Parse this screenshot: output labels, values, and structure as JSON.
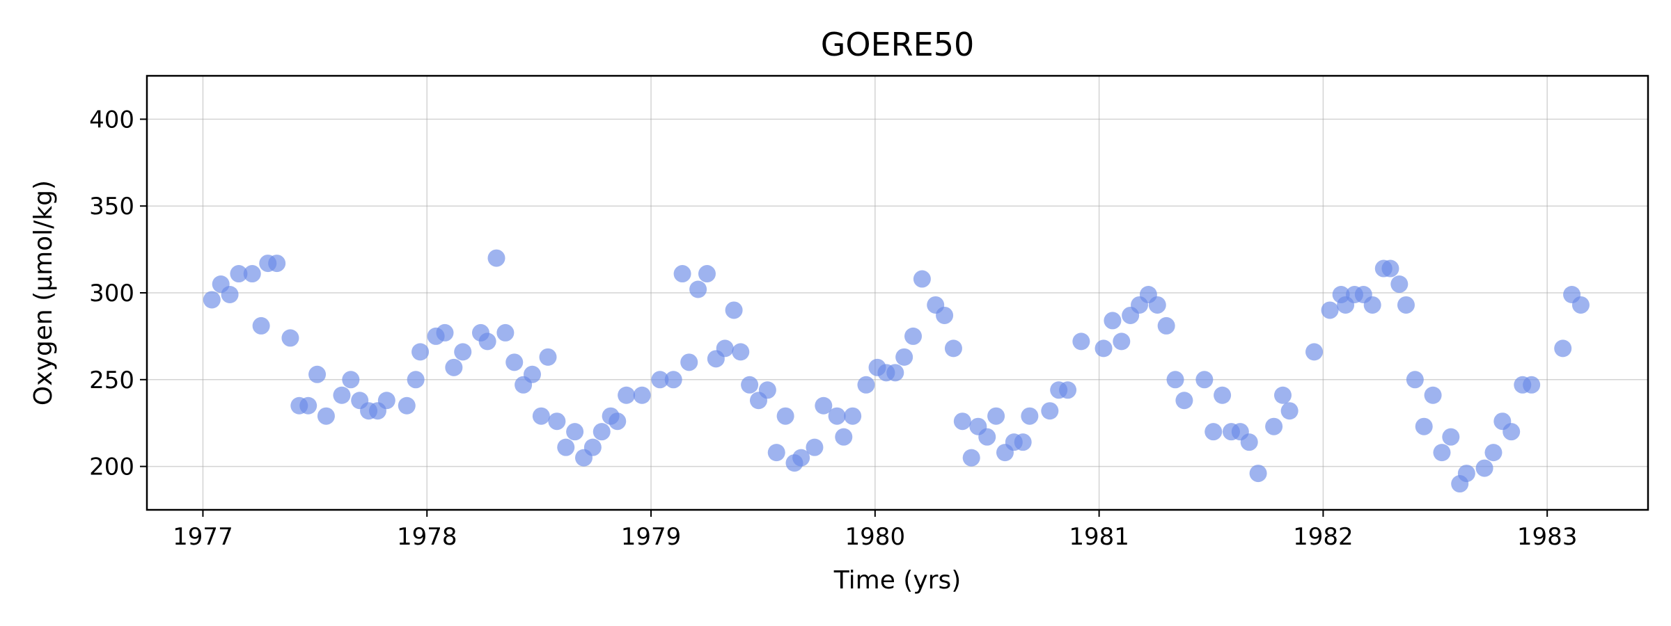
{
  "chart_data": {
    "type": "scatter",
    "title": "GOERE50",
    "xlabel": "Time (yrs)",
    "ylabel": "Oxygen (µmol/kg)",
    "xlim": [
      1976.75,
      1983.45
    ],
    "ylim": [
      175,
      425
    ],
    "xticks": [
      1977,
      1978,
      1979,
      1980,
      1981,
      1982,
      1983
    ],
    "yticks": [
      200,
      250,
      300,
      350,
      400
    ],
    "grid": true,
    "point_color": "#6a8ae6",
    "series": [
      {
        "x": [
          1977.04,
          1977.08,
          1977.12,
          1977.16,
          1977.22,
          1977.26,
          1977.29,
          1977.33,
          1977.39,
          1977.43,
          1977.47,
          1977.51,
          1977.55,
          1977.62,
          1977.66,
          1977.7,
          1977.74,
          1977.78,
          1977.82,
          1977.91,
          1977.95,
          1977.97,
          1978.04,
          1978.08,
          1978.12,
          1978.16,
          1978.24,
          1978.27,
          1978.31,
          1978.35,
          1978.39,
          1978.43,
          1978.47,
          1978.51,
          1978.54,
          1978.58,
          1978.62,
          1978.66,
          1978.7,
          1978.74,
          1978.78,
          1978.82,
          1978.85,
          1978.89,
          1978.96,
          1979.04,
          1979.1,
          1979.14,
          1979.17,
          1979.21,
          1979.25,
          1979.29,
          1979.33,
          1979.37,
          1979.4,
          1979.44,
          1979.48,
          1979.52,
          1979.56,
          1979.6,
          1979.64,
          1979.67,
          1979.73,
          1979.77,
          1979.83,
          1979.86,
          1979.9,
          1979.96,
          1980.01,
          1980.05,
          1980.09,
          1980.13,
          1980.17,
          1980.21,
          1980.27,
          1980.31,
          1980.35,
          1980.39,
          1980.43,
          1980.46,
          1980.5,
          1980.54,
          1980.58,
          1980.62,
          1980.66,
          1980.69,
          1980.78,
          1980.82,
          1980.86,
          1980.92,
          1981.02,
          1981.06,
          1981.1,
          1981.14,
          1981.18,
          1981.22,
          1981.26,
          1981.3,
          1981.34,
          1981.38,
          1981.47,
          1981.51,
          1981.55,
          1981.59,
          1981.63,
          1981.67,
          1981.71,
          1981.78,
          1981.82,
          1981.85,
          1981.96,
          1982.03,
          1982.08,
          1982.1,
          1982.14,
          1982.18,
          1982.22,
          1982.27,
          1982.3,
          1982.34,
          1982.37,
          1982.41,
          1982.45,
          1982.49,
          1982.53,
          1982.57,
          1982.61,
          1982.64,
          1982.72,
          1982.76,
          1982.8,
          1982.84,
          1982.89,
          1982.93,
          1983.07,
          1983.11,
          1983.15
        ],
        "y": [
          296,
          305,
          299,
          311,
          311,
          281,
          317,
          317,
          274,
          235,
          235,
          253,
          229,
          241,
          250,
          238,
          232,
          232,
          238,
          235,
          250,
          266,
          275,
          277,
          257,
          266,
          277,
          272,
          320,
          277,
          260,
          247,
          253,
          229,
          263,
          226,
          211,
          220,
          205,
          211,
          220,
          229,
          226,
          241,
          241,
          250,
          250,
          311,
          260,
          302,
          311,
          262,
          268,
          290,
          266,
          247,
          238,
          244,
          208,
          229,
          202,
          205,
          211,
          235,
          229,
          217,
          229,
          247,
          257,
          254,
          254,
          263,
          275,
          308,
          293,
          287,
          268,
          226,
          205,
          223,
          217,
          229,
          208,
          214,
          214,
          229,
          232,
          244,
          244,
          272,
          268,
          284,
          272,
          287,
          293,
          299,
          293,
          281,
          250,
          238,
          250,
          220,
          241,
          220,
          220,
          214,
          196,
          223,
          241,
          232,
          266,
          290,
          299,
          293,
          299,
          299,
          293,
          314,
          314,
          305,
          293,
          250,
          223,
          241,
          208,
          217,
          190,
          196,
          199,
          208,
          226,
          220,
          247,
          247,
          268,
          299,
          293
        ]
      }
    ]
  }
}
